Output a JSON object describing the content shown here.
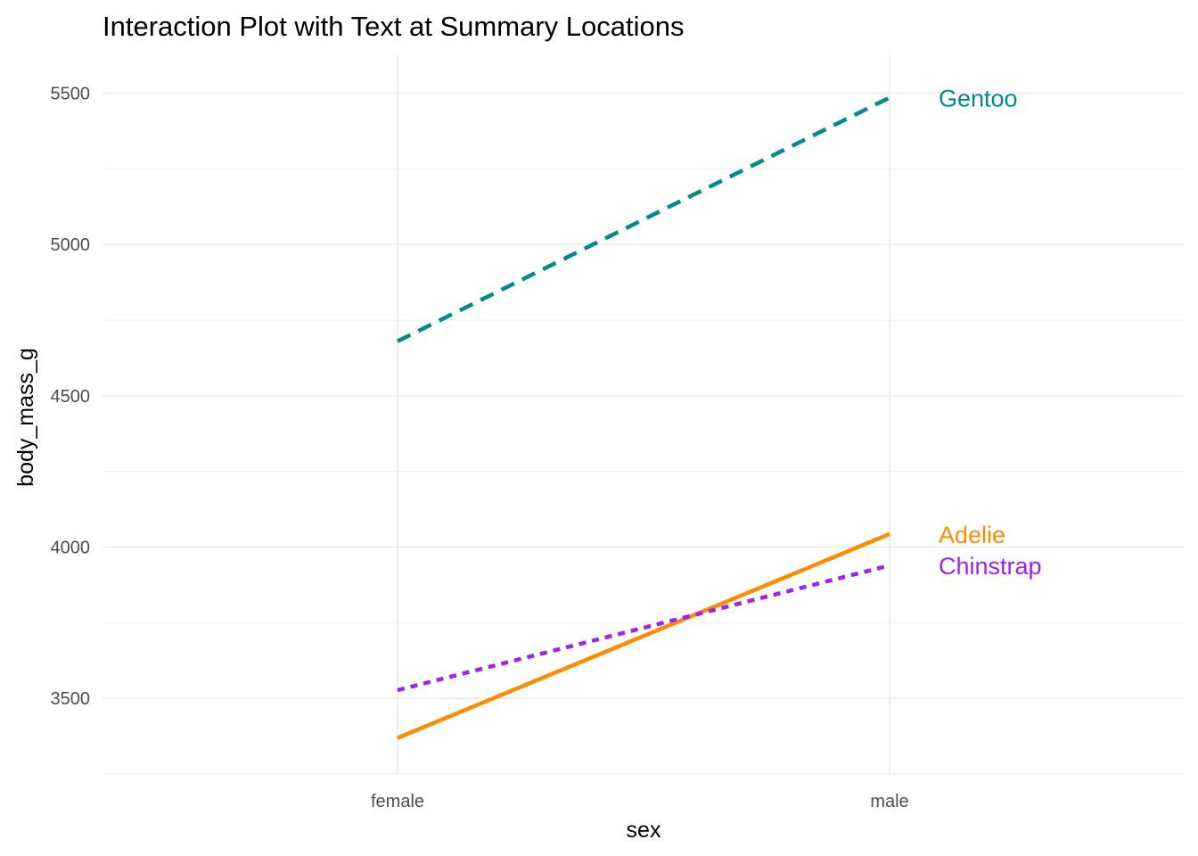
{
  "chart_data": {
    "type": "line",
    "title": "Interaction Plot with Text at Summary Locations",
    "xlabel": "sex",
    "ylabel": "body_mass_g",
    "categories": [
      "female",
      "male"
    ],
    "ylim": [
      3250,
      5625
    ],
    "yticks": [
      3500,
      4000,
      4500,
      5000,
      5500
    ],
    "grid": true,
    "series": [
      {
        "name": "Adelie",
        "values": [
          3369,
          4043
        ],
        "color": "#ff8c00",
        "line": "solid"
      },
      {
        "name": "Chinstrap",
        "values": [
          3527,
          3939
        ],
        "color": "#a020f0",
        "line": "dotted"
      },
      {
        "name": "Gentoo",
        "values": [
          4680,
          5485
        ],
        "color": "#008b8b",
        "line": "dashed"
      }
    ]
  }
}
